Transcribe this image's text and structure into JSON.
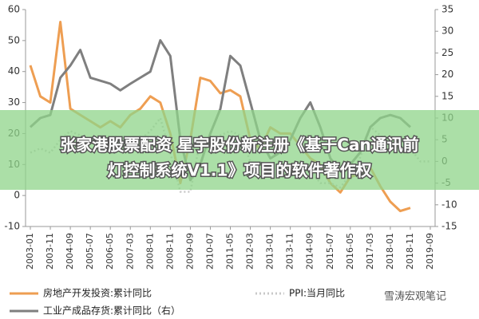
{
  "chart_data": {
    "type": "line",
    "x": [
      "2003-01",
      "2003-06",
      "2003-11",
      "2004-04",
      "2004-09",
      "2005-02",
      "2005-07",
      "2005-12",
      "2006-05",
      "2006-10",
      "2007-03",
      "2007-08",
      "2008-01",
      "2008-06",
      "2008-11",
      "2009-04",
      "2009-09",
      "2010-02",
      "2010-07",
      "2010-12",
      "2011-05",
      "2011-10",
      "2012-03",
      "2012-08",
      "2013-01",
      "2013-06",
      "2013-11",
      "2014-04",
      "2014-09",
      "2015-02",
      "2015-07",
      "2015-12",
      "2016-05",
      "2016-10",
      "2017-03",
      "2017-08",
      "2018-01",
      "2018-06",
      "2018-11",
      "2019-04",
      "2019-09"
    ],
    "xticks": [
      "2003-01",
      "2003-11",
      "2004-09",
      "2005-07",
      "2006-05",
      "2007-03",
      "2008-01",
      "2008-11",
      "2009-09",
      "2010-07",
      "2011-05",
      "2012-03",
      "2013-01",
      "2013-11",
      "2014-09",
      "2015-07",
      "2016-05",
      "2017-03",
      "2018-01",
      "2018-11",
      "2019-09"
    ],
    "ylim": [
      -10,
      60
    ],
    "yticks": [
      -10,
      0,
      10,
      20,
      30,
      40,
      50,
      60
    ],
    "y2lim": [
      -15,
      35
    ],
    "y2ticks": [
      -15,
      -10,
      -5,
      0,
      5,
      10,
      15,
      20,
      25,
      30,
      35
    ],
    "grid": false,
    "series": [
      {
        "name": "房地产开发投资:累计同比",
        "color": "#ee9e52",
        "values": [
          42,
          32,
          30,
          56,
          28,
          26,
          24,
          22,
          24,
          22,
          26,
          28,
          32,
          30,
          20,
          4,
          18,
          38,
          37,
          33,
          34,
          32,
          18,
          15,
          22,
          20,
          20,
          16,
          12,
          10,
          4,
          1,
          6,
          7,
          9,
          3,
          -2,
          -5,
          -4,
          null,
          null
        ]
      },
      {
        "name": "PPI:当月同比",
        "color": "#c8c8c8",
        "axis": "y2",
        "dashed": true,
        "values": [
          2,
          3,
          2,
          5,
          7,
          6,
          5,
          3,
          3,
          3,
          3,
          5,
          7,
          10,
          2,
          -7,
          -7,
          5,
          5,
          6,
          7,
          6,
          0,
          -3,
          -2,
          -2,
          -1,
          -2,
          -2,
          -5,
          -5,
          -6,
          -3,
          1,
          8,
          6,
          4,
          5,
          3,
          0,
          0
        ]
      },
      {
        "name": "工业产成品存货:累计同比（右）",
        "color": "#7f7f7f",
        "axis": "y2",
        "values": [
          7.9,
          10,
          10.7,
          19.3,
          22.1,
          25.7,
          19.3,
          18.6,
          17.9,
          16.4,
          17.9,
          19.3,
          20.7,
          27.9,
          24.3,
          5,
          -4.3,
          -0.7,
          6.4,
          12.1,
          24.3,
          22.1,
          13.6,
          5,
          0.7,
          2.1,
          5,
          10,
          13.6,
          7.9,
          0.7,
          -2.1,
          -0.7,
          2.1,
          7.9,
          10,
          10.7,
          10,
          7.9,
          null,
          null
        ]
      }
    ]
  },
  "banner": {
    "line1": "张家港股票配资 星宇股份新注册《基于Can通讯前",
    "line2": "灯控制系统V1.1》项目的软件著作权"
  },
  "watermark": "雪涛宏观笔记"
}
